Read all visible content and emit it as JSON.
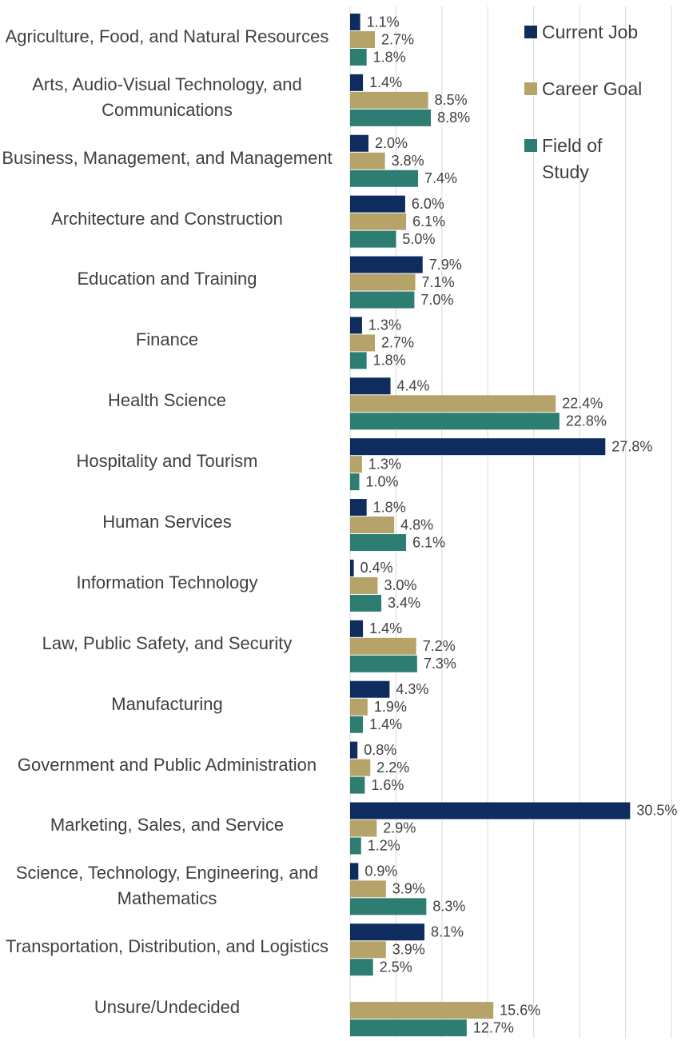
{
  "chart_data": {
    "type": "bar",
    "orientation": "horizontal",
    "categories": [
      "Agriculture, Food, and Natural Resources",
      "Arts, Audio-Visual Technology, and Communications",
      "Business, Management, and Management",
      "Architecture and Construction",
      "Education and Training",
      "Finance",
      "Health Science",
      "Hospitality and Tourism",
      "Human Services",
      "Information Technology",
      "Law, Public Safety, and Security",
      "Manufacturing",
      "Government and Public Administration",
      "Marketing, Sales, and Service",
      "Science, Technology, Engineering, and Mathematics",
      "Transportation, Distribution, and Logistics",
      "Unsure/Undecided"
    ],
    "series": [
      {
        "name": "Current Job",
        "color": "#0e2d5e",
        "values": [
          1.1,
          1.4,
          2.0,
          6.0,
          7.9,
          1.3,
          4.4,
          27.8,
          1.8,
          0.4,
          1.4,
          4.3,
          0.8,
          30.5,
          0.9,
          8.1,
          null
        ],
        "value_labels": [
          "1.1%",
          "1.4%",
          "2.0%",
          "6.0%",
          "7.9%",
          "1.3%",
          "4.4%",
          "27.8%",
          "1.8%",
          "0.4%",
          "1.4%",
          "4.3%",
          "0.8%",
          "30.5%",
          "0.9%",
          "8.1%",
          null
        ]
      },
      {
        "name": "Career Goal",
        "color": "#b5a36a",
        "values": [
          2.7,
          8.5,
          3.8,
          6.1,
          7.1,
          2.7,
          22.4,
          1.3,
          4.8,
          3.0,
          7.2,
          1.9,
          2.2,
          2.9,
          3.9,
          3.9,
          15.6
        ],
        "value_labels": [
          "2.7%",
          "8.5%",
          "3.8%",
          "6.1%",
          "7.1%",
          "2.7%",
          "22.4%",
          "1.3%",
          "4.8%",
          "3.0%",
          "7.2%",
          "1.9%",
          "2.2%",
          "2.9%",
          "3.9%",
          "3.9%",
          "15.6%"
        ]
      },
      {
        "name": "Field of Study",
        "color": "#2e7d72",
        "values": [
          1.8,
          8.8,
          7.4,
          5.0,
          7.0,
          1.8,
          22.8,
          1.0,
          6.1,
          3.4,
          7.3,
          1.4,
          1.6,
          1.2,
          8.3,
          2.5,
          12.7
        ],
        "value_labels": [
          "1.8%",
          "8.8%",
          "7.4%",
          "5.0%",
          "7.0%",
          "1.8%",
          "22.8%",
          "1.0%",
          "6.1%",
          "3.4%",
          "7.3%",
          "1.4%",
          "1.6%",
          "1.2%",
          "8.3%",
          "2.5%",
          "12.7%"
        ]
      }
    ],
    "xlim": [
      0,
      35
    ],
    "xticks": [
      0,
      5,
      10,
      15,
      20,
      25,
      30,
      35
    ],
    "grid": true,
    "legend": "top-right"
  }
}
